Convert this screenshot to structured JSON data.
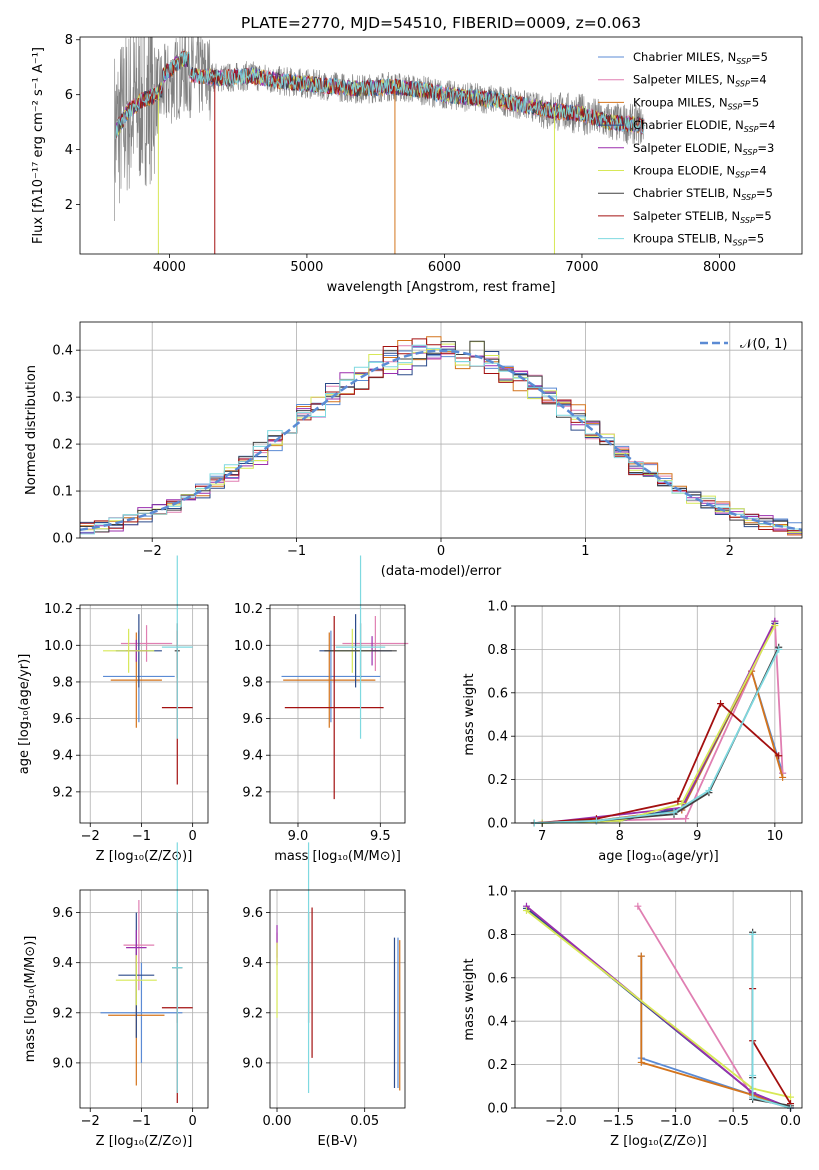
{
  "colors": {
    "Chabrier MILES": "#5b8bd4",
    "Salpeter MILES": "#e07fb2",
    "Kroupa MILES": "#d4741c",
    "Chabrier ELODIE": "#2b4a8a",
    "Salpeter ELODIE": "#9b2fae",
    "Kroupa ELODIE": "#d7e857",
    "Chabrier STELIB": "#404040",
    "Salpeter STELIB": "#a31010",
    "Kroupa STELIB": "#7fd9e0",
    "observed": "#808080",
    "normal": "#5b8bd4"
  },
  "legend_models": [
    {
      "name": "Chabrier MILES",
      "base": "Chabrier MILES, N",
      "sub": "SSP",
      "tail": "=5"
    },
    {
      "name": "Salpeter MILES",
      "base": "Salpeter MILES, N",
      "sub": "SSP",
      "tail": "=4"
    },
    {
      "name": "Kroupa MILES",
      "base": "Kroupa MILES, N",
      "sub": "SSP",
      "tail": "=5"
    },
    {
      "name": "Chabrier ELODIE",
      "base": "Chabrier ELODIE, N",
      "sub": "SSP",
      "tail": "=4"
    },
    {
      "name": "Salpeter ELODIE",
      "base": "Salpeter ELODIE, N",
      "sub": "SSP",
      "tail": "=3"
    },
    {
      "name": "Kroupa ELODIE",
      "base": "Kroupa ELODIE, N",
      "sub": "SSP",
      "tail": "=4"
    },
    {
      "name": "Chabrier STELIB",
      "base": "Chabrier STELIB, N",
      "sub": "SSP",
      "tail": "=5"
    },
    {
      "name": "Salpeter STELIB",
      "base": "Salpeter STELIB, N",
      "sub": "SSP",
      "tail": "=5"
    },
    {
      "name": "Kroupa STELIB",
      "base": "Kroupa STELIB, N",
      "sub": "SSP",
      "tail": "=5"
    }
  ],
  "chart_data": [
    {
      "id": "spectrum",
      "type": "line",
      "title": "PLATE=2770, MJD=54510, FIBERID=0009, z=0.063",
      "xlabel": "wavelength [Angstrom, rest frame]",
      "ylabel": "Flux [fλ10⁻¹⁷ erg cm⁻² s⁻¹ A⁻¹]",
      "xlim": [
        3350,
        8600
      ],
      "ylim": [
        0.2,
        8.1
      ],
      "xticks": [
        4000,
        5000,
        6000,
        7000,
        8000
      ],
      "yticks": [
        2,
        4,
        6,
        8
      ],
      "legend": "right",
      "grid": false,
      "envelope": {
        "x": [
          3600,
          3700,
          3800,
          3900,
          4000,
          4100,
          4200,
          4400,
          4600,
          4800,
          5000,
          5200,
          5400,
          5600,
          5800,
          6000,
          6200,
          6400,
          6600,
          6800,
          7000,
          7200,
          7400,
          7600,
          7800,
          8000,
          8200,
          8400
        ],
        "y": [
          4.6,
          5.4,
          5.8,
          6.0,
          6.4,
          6.8,
          6.7,
          6.6,
          6.7,
          6.5,
          6.4,
          6.3,
          6.2,
          6.3,
          6.2,
          6.0,
          5.9,
          5.8,
          5.6,
          5.4,
          5.3,
          5.0,
          4.9,
          4.8,
          4.8,
          4.6,
          4.5,
          4.4
        ]
      }
    },
    {
      "id": "residuals",
      "type": "histogram",
      "xlabel": "(data-model)/error",
      "ylabel": "Normed distribution",
      "xlim": [
        -2.5,
        2.5
      ],
      "ylim": [
        0,
        0.46
      ],
      "xticks": [
        -2,
        -1,
        0,
        1,
        2
      ],
      "yticks": [
        0.0,
        0.1,
        0.2,
        0.3,
        0.4
      ],
      "bin_width": 0.1,
      "grid": true,
      "legend": "top-right",
      "normal_label": "𝒩(0, 1)"
    },
    {
      "id": "age_vs_Z",
      "type": "errorbar",
      "xlabel": "Z [log₁₀(Z/Z⊙)]",
      "ylabel": "age  [log₁₀(age/yr)]",
      "xlim": [
        -2.2,
        0.3
      ],
      "ylim": [
        9.03,
        10.22
      ],
      "xticks": [
        -2,
        -1,
        0
      ],
      "yticks": [
        9.2,
        9.4,
        9.6,
        9.8,
        10.0,
        10.2
      ],
      "points": [
        {
          "model": "Chabrier MILES",
          "x": -1.05,
          "xerr": 0.7,
          "y": 9.83,
          "yerr": 0.25
        },
        {
          "model": "Salpeter MILES",
          "x": -0.9,
          "xerr": 0.5,
          "y": 10.01,
          "yerr": 0.1
        },
        {
          "model": "Kroupa MILES",
          "x": -1.1,
          "xerr": 0.5,
          "y": 9.81,
          "yerr": 0.26
        },
        {
          "model": "Chabrier ELODIE",
          "x": -1.05,
          "xerr": 0.45,
          "y": 9.97,
          "yerr": 0.2
        },
        {
          "model": "Salpeter ELODIE",
          "x": -1.1,
          "xerr": 0.2,
          "y": 9.97,
          "yerr": 0.06
        },
        {
          "model": "Kroupa ELODIE",
          "x": -1.25,
          "xerr": 0.5,
          "y": 9.97,
          "yerr": 0.12
        },
        {
          "model": "Chabrier STELIB",
          "x": -0.3,
          "xerr": 0.05,
          "y": 9.97,
          "yerr": 0.15
        },
        {
          "model": "Salpeter STELIB",
          "x": -0.3,
          "xerr": 0.3,
          "y": 9.66,
          "yerr": 0.42
        },
        {
          "model": "Kroupa STELIB",
          "x": -0.3,
          "xerr": 0.3,
          "y": 9.99,
          "yerr": 0.5
        }
      ]
    },
    {
      "id": "age_vs_mass",
      "type": "errorbar",
      "xlabel": "mass [log₁₀(M/M⊙)]",
      "ylabel": "",
      "xlim": [
        8.83,
        9.65
      ],
      "ylim": [
        9.03,
        10.22
      ],
      "xticks": [
        9.0,
        9.5
      ],
      "yticks": [
        9.2,
        9.4,
        9.6,
        9.8,
        10.0,
        10.2
      ],
      "points": [
        {
          "model": "Chabrier MILES",
          "x": 9.2,
          "xerr": 0.3,
          "y": 9.83,
          "yerr": 0.25
        },
        {
          "model": "Salpeter MILES",
          "x": 9.47,
          "xerr": 0.2,
          "y": 10.01,
          "yerr": 0.15
        },
        {
          "model": "Kroupa MILES",
          "x": 9.19,
          "xerr": 0.28,
          "y": 9.81,
          "yerr": 0.26
        },
        {
          "model": "Chabrier ELODIE",
          "x": 9.35,
          "xerr": 0.22,
          "y": 9.97,
          "yerr": 0.2
        },
        {
          "model": "Salpeter ELODIE",
          "x": 9.45,
          "xerr": 0.05,
          "y": 9.97,
          "yerr": 0.08
        },
        {
          "model": "Kroupa ELODIE",
          "x": 9.33,
          "xerr": 0.12,
          "y": 9.97,
          "yerr": 0.12
        },
        {
          "model": "Chabrier STELIB",
          "x": 9.38,
          "xerr": 0.22,
          "y": 9.97,
          "yerr": 0.15
        },
        {
          "model": "Salpeter STELIB",
          "x": 9.22,
          "xerr": 0.3,
          "y": 9.66,
          "yerr": 0.5
        },
        {
          "model": "Kroupa STELIB",
          "x": 9.38,
          "xerr": 0.15,
          "y": 9.99,
          "yerr": 0.5
        }
      ]
    },
    {
      "id": "weight_vs_age",
      "type": "line",
      "xlabel": "age  [log₁₀(age/yr)]",
      "ylabel": "mass weight",
      "xlim": [
        6.65,
        10.35
      ],
      "ylim": [
        0,
        1
      ],
      "xticks": [
        7,
        8,
        9,
        10
      ],
      "yticks": [
        0.0,
        0.2,
        0.4,
        0.6,
        0.8,
        1.0
      ],
      "series": [
        {
          "model": "Chabrier MILES",
          "x": [
            6.9,
            7.7,
            8.8,
            9.7,
            10.1
          ],
          "y": [
            0.0,
            0.01,
            0.06,
            0.7,
            0.23
          ]
        },
        {
          "model": "Salpeter MILES",
          "x": [
            6.9,
            7.7,
            8.85,
            10.0,
            10.1
          ],
          "y": [
            0.0,
            0.01,
            0.02,
            0.93,
            0.23
          ]
        },
        {
          "model": "Kroupa MILES",
          "x": [
            6.9,
            7.7,
            8.8,
            9.7,
            10.1
          ],
          "y": [
            0.0,
            0.01,
            0.06,
            0.7,
            0.21
          ]
        },
        {
          "model": "Chabrier ELODIE",
          "x": [
            7.0,
            8.0,
            8.8,
            10.0
          ],
          "y": [
            0.0,
            0.01,
            0.07,
            0.92
          ]
        },
        {
          "model": "Salpeter ELODIE",
          "x": [
            7.0,
            8.8,
            10.0
          ],
          "y": [
            0.0,
            0.07,
            0.93
          ]
        },
        {
          "model": "Kroupa ELODIE",
          "x": [
            7.0,
            8.0,
            8.8,
            10.0
          ],
          "y": [
            0.0,
            0.01,
            0.09,
            0.91
          ]
        },
        {
          "model": "Chabrier STELIB",
          "x": [
            6.9,
            7.7,
            8.7,
            9.15,
            10.05
          ],
          "y": [
            0.0,
            0.01,
            0.04,
            0.14,
            0.81
          ]
        },
        {
          "model": "Salpeter STELIB",
          "x": [
            6.9,
            7.7,
            8.75,
            9.3,
            10.05
          ],
          "y": [
            0.0,
            0.02,
            0.1,
            0.55,
            0.31
          ]
        },
        {
          "model": "Kroupa STELIB",
          "x": [
            6.9,
            7.7,
            8.7,
            9.15,
            10.05
          ],
          "y": [
            0.0,
            0.01,
            0.05,
            0.15,
            0.8
          ]
        }
      ]
    },
    {
      "id": "mass_vs_Z",
      "type": "errorbar",
      "xlabel": "Z [log₁₀(Z/Z⊙)]",
      "ylabel": "mass [log₁₀(M/M⊙)]",
      "xlim": [
        -2.2,
        0.3
      ],
      "ylim": [
        8.82,
        9.69
      ],
      "xticks": [
        -2,
        -1,
        0
      ],
      "yticks": [
        9.0,
        9.2,
        9.4,
        9.6
      ],
      "points": [
        {
          "model": "Chabrier MILES",
          "x": -1.0,
          "xerr": 0.8,
          "y": 9.2,
          "yerr": 0.2
        },
        {
          "model": "Salpeter MILES",
          "x": -1.05,
          "xerr": 0.3,
          "y": 9.47,
          "yerr": 0.18
        },
        {
          "model": "Kroupa MILES",
          "x": -1.1,
          "xerr": 0.55,
          "y": 9.19,
          "yerr": 0.28
        },
        {
          "model": "Chabrier ELODIE",
          "x": -1.1,
          "xerr": 0.35,
          "y": 9.35,
          "yerr": 0.25
        },
        {
          "model": "Salpeter ELODIE",
          "x": -1.1,
          "xerr": 0.2,
          "y": 9.46,
          "yerr": 0.07
        },
        {
          "model": "Kroupa ELODIE",
          "x": -1.1,
          "xerr": 0.4,
          "y": 9.33,
          "yerr": 0.1
        },
        {
          "model": "Chabrier STELIB",
          "x": -0.3,
          "xerr": 0.1,
          "y": 9.38,
          "yerr": 0.22
        },
        {
          "model": "Salpeter STELIB",
          "x": -0.3,
          "xerr": 0.3,
          "y": 9.22,
          "yerr": 0.38
        },
        {
          "model": "Kroupa STELIB",
          "x": -0.3,
          "xerr": 0.1,
          "y": 9.38,
          "yerr": 0.5
        }
      ]
    },
    {
      "id": "mass_vs_EBV",
      "type": "errorbar",
      "xlabel": "E(B-V)",
      "ylabel": "",
      "xlim": [
        -0.004,
        0.073
      ],
      "ylim": [
        8.82,
        9.69
      ],
      "xticks": [
        0.0,
        0.05
      ],
      "yticks": [
        9.0,
        9.2,
        9.4,
        9.6
      ],
      "points": [
        {
          "model": "Chabrier MILES",
          "x": 0.069,
          "xerr": 0,
          "y": 9.2,
          "yerr": 0.3
        },
        {
          "model": "Salpeter MILES",
          "x": 0.0,
          "xerr": 0,
          "y": 9.47,
          "yerr": 0.05
        },
        {
          "model": "Kroupa MILES",
          "x": 0.07,
          "xerr": 0,
          "y": 9.19,
          "yerr": 0.3
        },
        {
          "model": "Chabrier ELODIE",
          "x": 0.067,
          "xerr": 0,
          "y": 9.2,
          "yerr": 0.3
        },
        {
          "model": "Salpeter ELODIE",
          "x": 0.0,
          "xerr": 0,
          "y": 9.47,
          "yerr": 0.08
        },
        {
          "model": "Kroupa ELODIE",
          "x": 0.0,
          "xerr": 0,
          "y": 9.33,
          "yerr": 0.15
        },
        {
          "model": "Chabrier STELIB",
          "x": 0.018,
          "xerr": 0,
          "y": 9.38,
          "yerr": 0.22
        },
        {
          "model": "Salpeter STELIB",
          "x": 0.02,
          "xerr": 0,
          "y": 9.32,
          "yerr": 0.3
        },
        {
          "model": "Kroupa STELIB",
          "x": 0.018,
          "xerr": 0,
          "y": 9.38,
          "yerr": 0.5
        }
      ]
    },
    {
      "id": "weight_vs_Z",
      "type": "line",
      "xlabel": "Z [log₁₀(Z/Z⊙)]",
      "ylabel": "mass weight",
      "xlim": [
        -2.4,
        0.1
      ],
      "ylim": [
        0,
        1
      ],
      "xticks": [
        -2.0,
        -1.5,
        -1.0,
        -0.5,
        0.0
      ],
      "yticks": [
        0.0,
        0.2,
        0.4,
        0.6,
        0.8,
        1.0
      ],
      "series": [
        {
          "model": "Chabrier MILES",
          "x": [
            -1.3,
            -1.3,
            -0.33,
            0.0
          ],
          "y": [
            0.7,
            0.23,
            0.06,
            0.0
          ]
        },
        {
          "model": "Salpeter MILES",
          "x": [
            -1.33,
            -0.33,
            0.0
          ],
          "y": [
            0.93,
            0.05,
            0.0
          ]
        },
        {
          "model": "Kroupa MILES",
          "x": [
            -1.3,
            -1.3,
            -0.33,
            0.0
          ],
          "y": [
            0.7,
            0.21,
            0.06,
            0.0
          ]
        },
        {
          "model": "Chabrier ELODIE",
          "x": [
            -2.3,
            -0.33,
            0.0
          ],
          "y": [
            0.92,
            0.07,
            0.0
          ]
        },
        {
          "model": "Salpeter ELODIE",
          "x": [
            -2.3,
            -0.33,
            0.0
          ],
          "y": [
            0.93,
            0.07,
            0.0
          ]
        },
        {
          "model": "Kroupa ELODIE",
          "x": [
            -2.3,
            -0.33,
            0.0
          ],
          "y": [
            0.91,
            0.09,
            0.05
          ]
        },
        {
          "model": "Chabrier STELIB",
          "x": [
            -0.33,
            -0.33,
            -0.33,
            0.0
          ],
          "y": [
            0.81,
            0.14,
            0.04,
            0.01
          ]
        },
        {
          "model": "Salpeter STELIB",
          "x": [
            -0.33,
            -0.33,
            0.0
          ],
          "y": [
            0.55,
            0.31,
            0.02
          ]
        },
        {
          "model": "Kroupa STELIB",
          "x": [
            -0.33,
            -0.33,
            -0.33,
            0.0
          ],
          "y": [
            0.8,
            0.15,
            0.05,
            0.0
          ]
        }
      ]
    }
  ]
}
